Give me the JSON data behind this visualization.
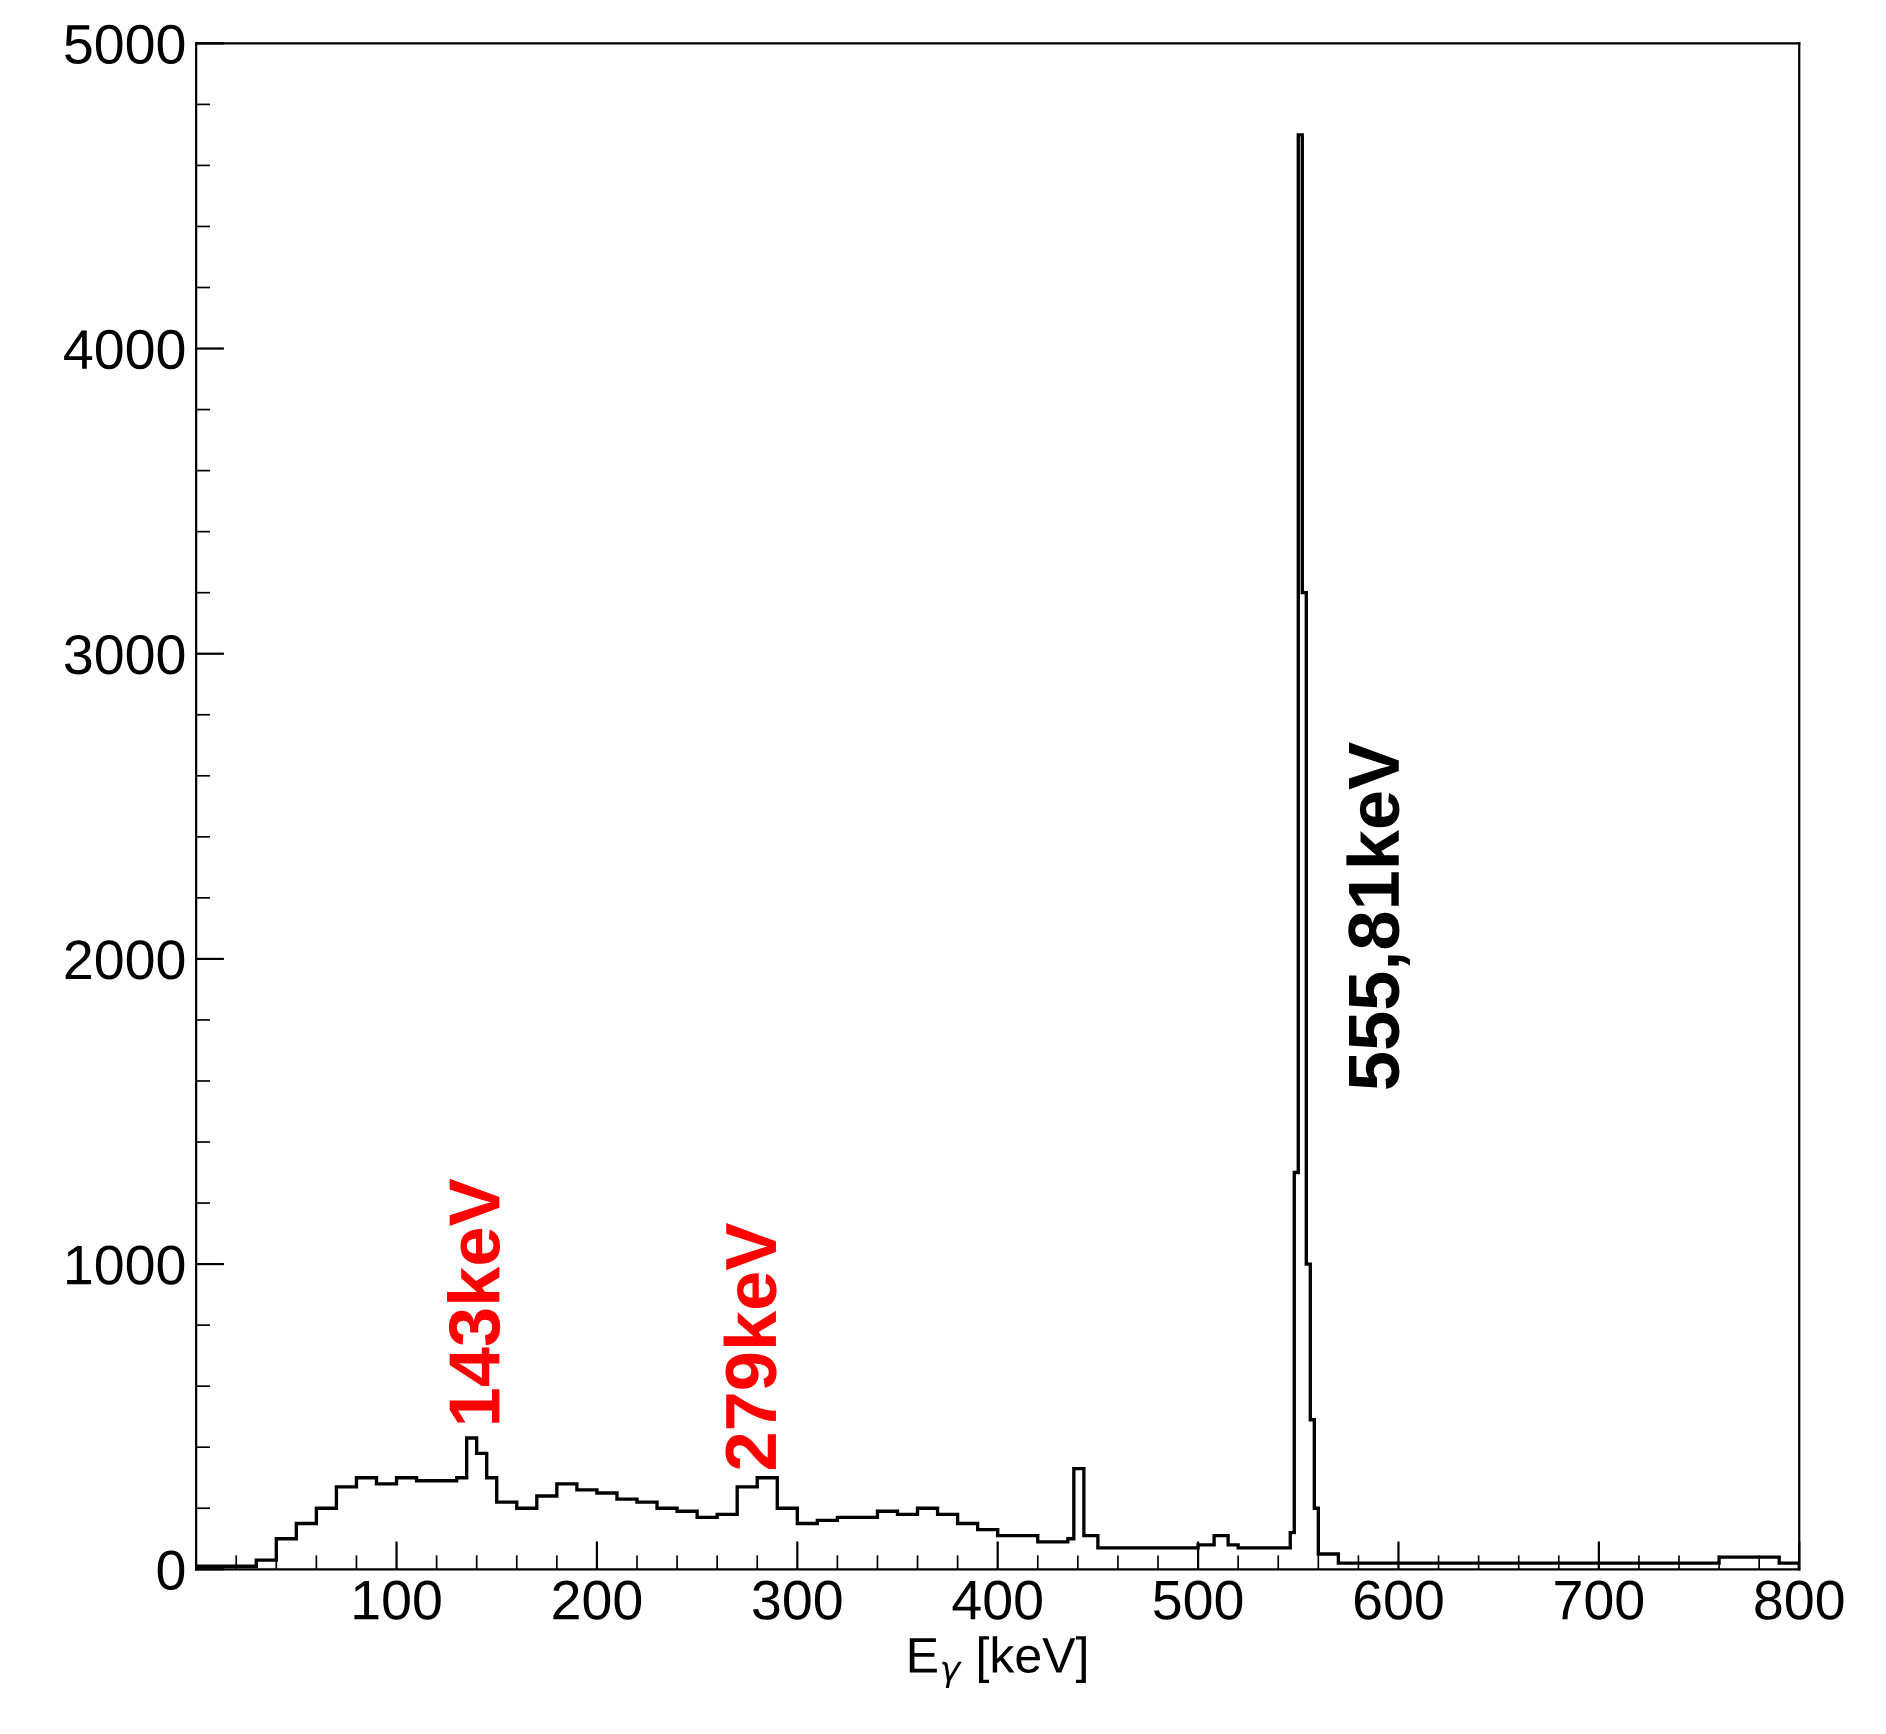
{
  "chart_data": {
    "type": "histogram",
    "xlabel": "E$_{γ}$ [keV]",
    "bins": [
      0,
      30,
      40,
      50,
      60,
      70,
      80,
      90,
      100,
      110,
      120,
      130,
      135,
      140,
      145,
      150,
      160,
      170,
      180,
      190,
      200,
      210,
      220,
      230,
      240,
      250,
      260,
      270,
      280,
      290,
      300,
      310,
      320,
      340,
      350,
      360,
      370,
      380,
      390,
      400,
      420,
      435,
      438,
      443,
      450,
      500,
      508,
      515,
      520,
      546,
      548,
      550,
      552,
      554,
      556,
      558,
      560,
      570,
      760,
      790,
      800
    ],
    "values": [
      10,
      30,
      100,
      150,
      200,
      270,
      300,
      280,
      300,
      290,
      290,
      300,
      430,
      380,
      300,
      220,
      200,
      240,
      280,
      260,
      250,
      230,
      220,
      200,
      190,
      170,
      180,
      270,
      300,
      200,
      150,
      160,
      170,
      190,
      180,
      200,
      180,
      150,
      130,
      110,
      90,
      100,
      330,
      110,
      70,
      80,
      110,
      80,
      70,
      120,
      1300,
      4700,
      3200,
      1000,
      490,
      200,
      50,
      20,
      40,
      20
    ],
    "color": "#000000",
    "xlim": [
      0,
      800
    ],
    "ylim": [
      0,
      5000
    ],
    "xticks": [
      100,
      200,
      300,
      400,
      500,
      600,
      700,
      800
    ],
    "yticks": [
      0,
      1000,
      2000,
      3000,
      4000,
      5000
    ],
    "grid": false,
    "legend": false,
    "annotations": [
      {
        "text": "143keV",
        "x": 142,
        "y": 465
      },
      {
        "text": "279keV",
        "x": 280,
        "y": 320
      },
      "555,81keV"
    ]
  }
}
